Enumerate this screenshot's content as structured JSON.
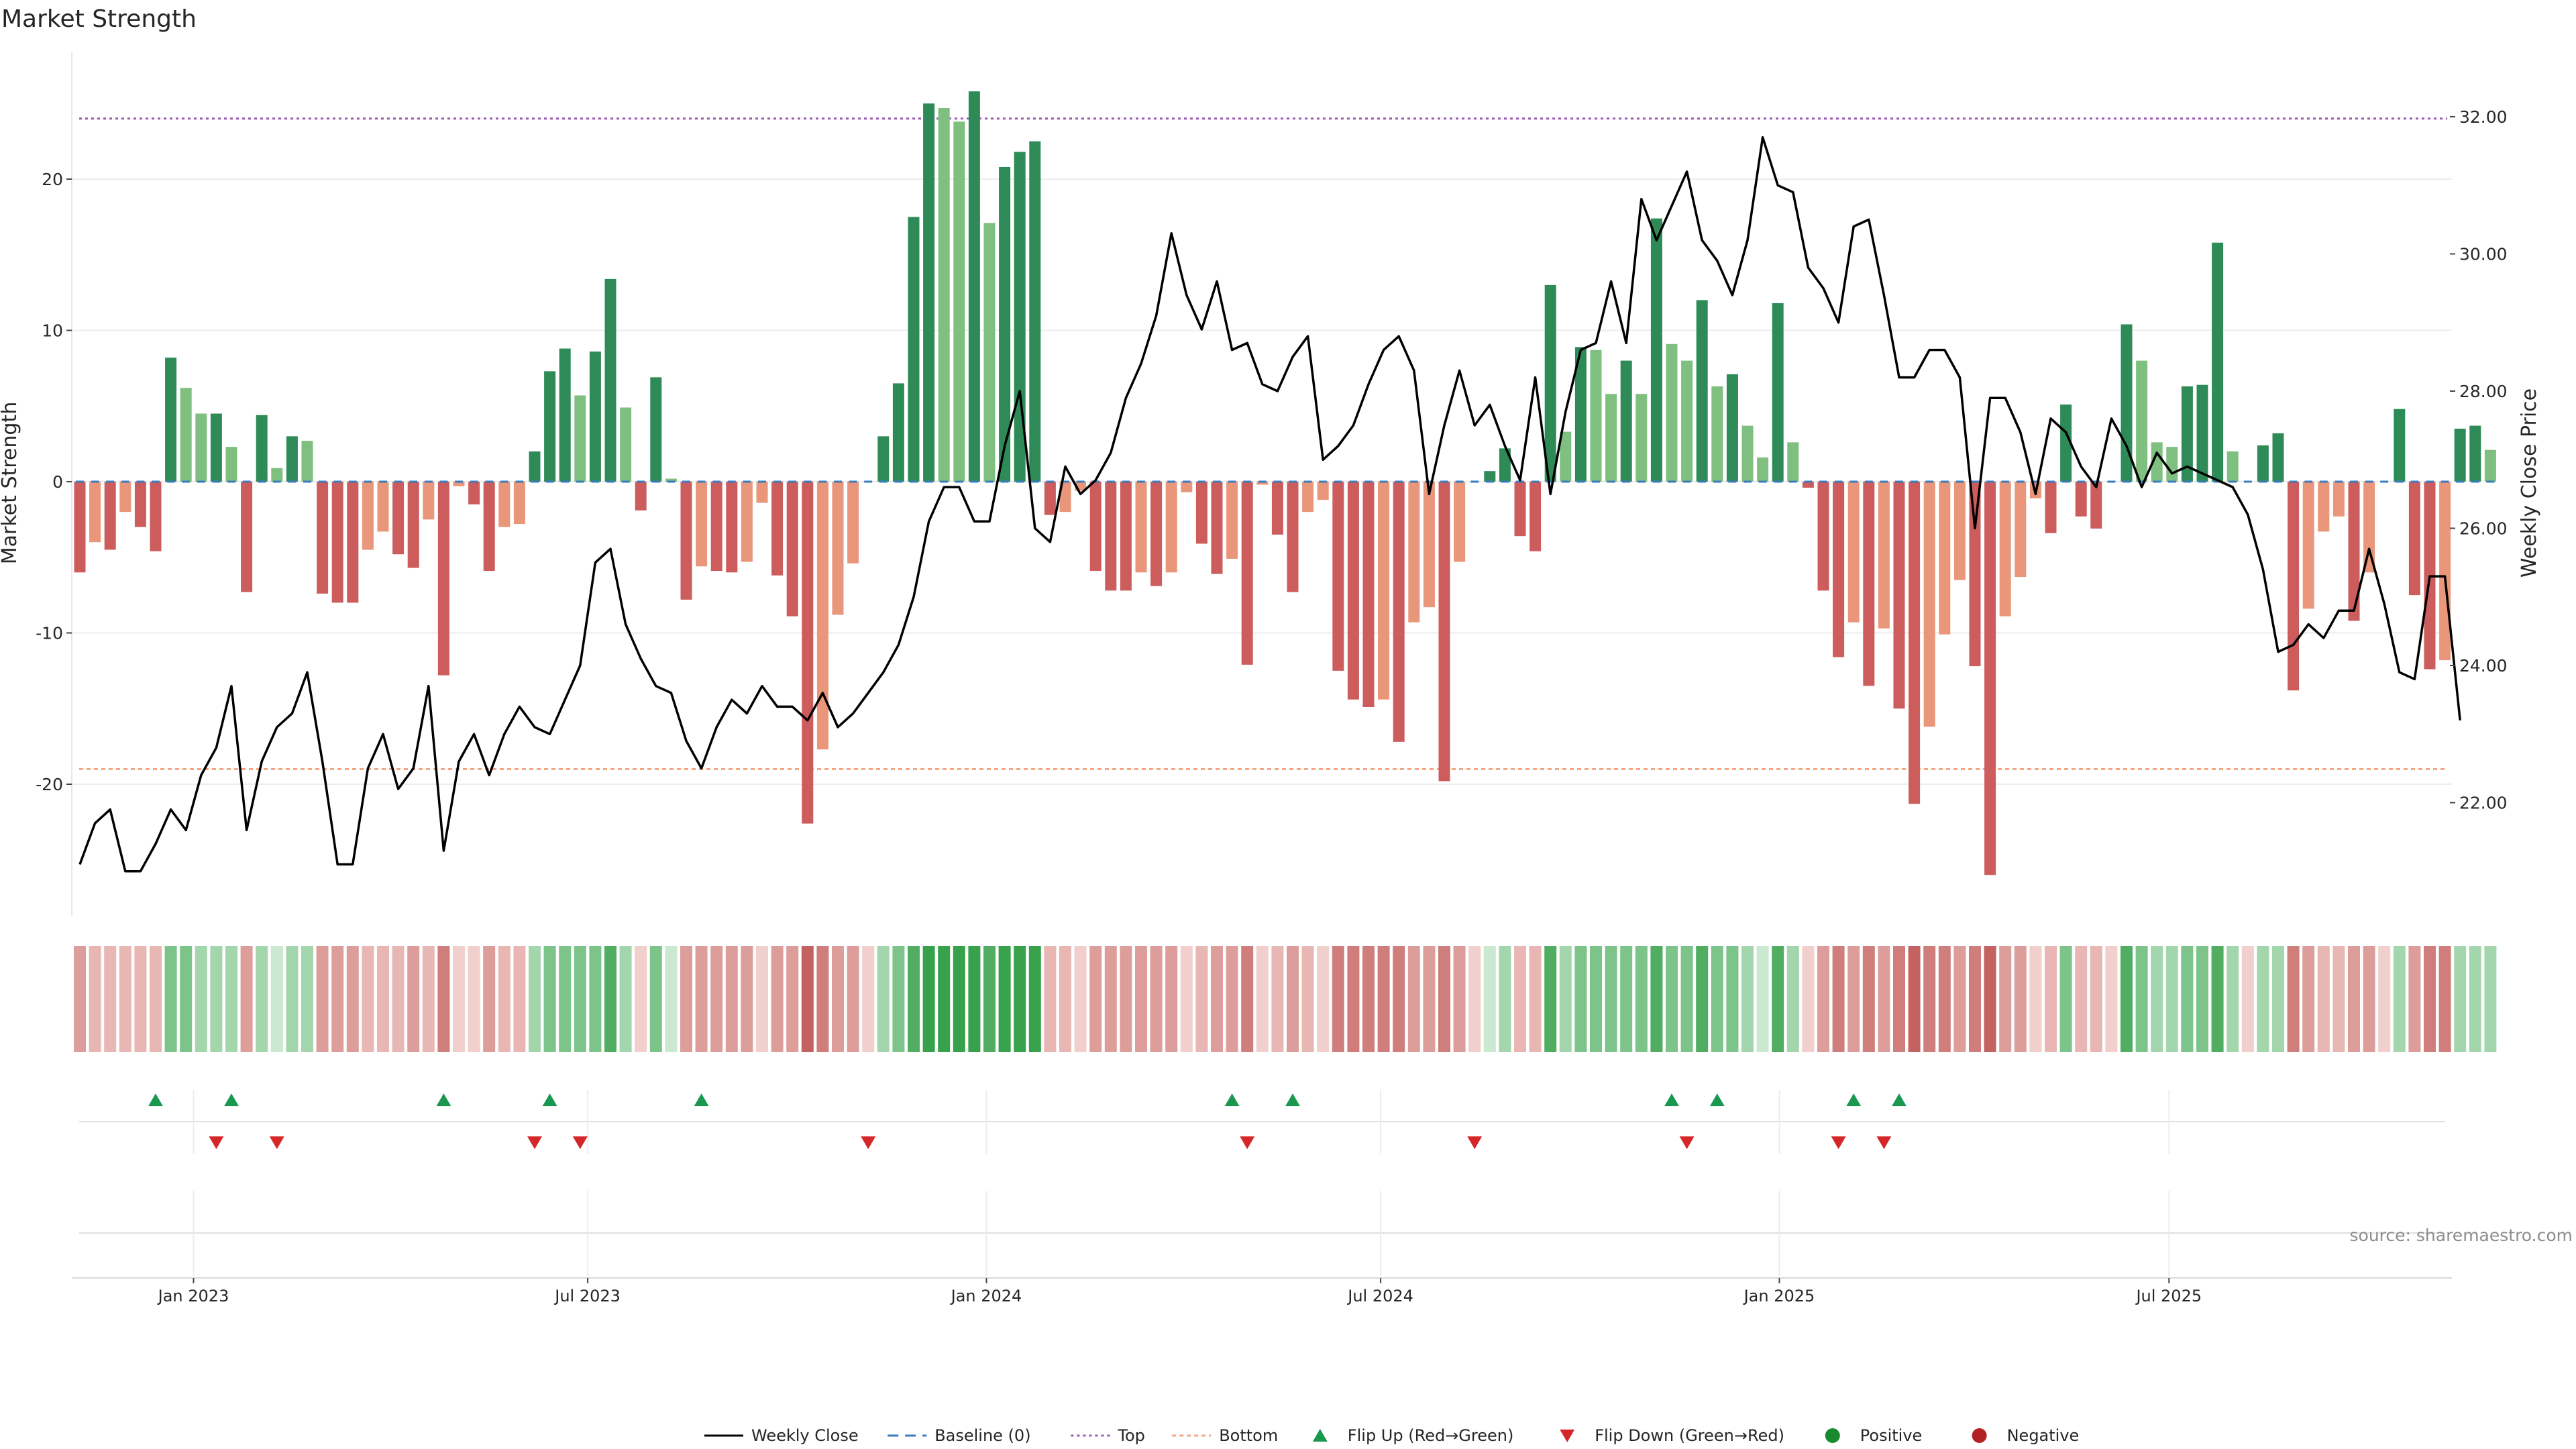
{
  "chart_data": {
    "type": "bar",
    "title": "Market Strength",
    "ylabel_left": "Market Strength",
    "ylabel_right": "Weekly Close Price",
    "ylim_left": [
      -28,
      28.5
    ],
    "ylim_right": [
      20.4,
      33.0
    ],
    "yticks_left": [
      {
        "v": 20,
        "label": "20"
      },
      {
        "v": 10,
        "label": "10"
      },
      {
        "v": 0,
        "label": "0"
      },
      {
        "v": -10,
        "label": "-10"
      },
      {
        "v": -20,
        "label": "-20"
      }
    ],
    "yticks_right": [
      {
        "v": 32,
        "label": "32.00"
      },
      {
        "v": 30,
        "label": "30.00"
      },
      {
        "v": 28,
        "label": "28.00"
      },
      {
        "v": 26,
        "label": "26.00"
      },
      {
        "v": 24,
        "label": "24.00"
      },
      {
        "v": 22,
        "label": "22.00"
      }
    ],
    "xticks": [
      {
        "i": 7.5,
        "label": "Jan 2023"
      },
      {
        "i": 33.5,
        "label": "Jul 2023"
      },
      {
        "i": 59.8,
        "label": "Jan 2024"
      },
      {
        "i": 85.8,
        "label": "Jul 2024"
      },
      {
        "i": 112.1,
        "label": "Jan 2025"
      },
      {
        "i": 137.8,
        "label": "Jul 2025"
      }
    ],
    "top_line": 24,
    "bottom_line": -19,
    "strength": [
      -6,
      -4,
      -4.5,
      -2,
      -3,
      -4.6,
      8.2,
      6.2,
      4.5,
      4.5,
      2.3,
      -7.3,
      4.4,
      0.9,
      3,
      2.7,
      -7.4,
      -8,
      -8,
      -4.5,
      -3.3,
      -4.8,
      -5.7,
      -2.5,
      -12.8,
      -0.3,
      -1.5,
      -5.9,
      -3,
      -2.8,
      2,
      7.3,
      8.8,
      5.7,
      8.6,
      13.4,
      4.9,
      -1.9,
      6.9,
      0.2,
      -7.8,
      -5.6,
      -5.9,
      -6,
      -5.3,
      -1.4,
      -6.2,
      -8.9,
      -22.6,
      -17.7,
      -8.8,
      -5.4,
      0,
      3,
      6.5,
      17.5,
      25,
      24.7,
      23.8,
      25.8,
      17.1,
      20.8,
      21.8,
      22.5,
      -2.2,
      -2,
      -0.6,
      -5.9,
      -7.2,
      -7.2,
      -6,
      -6.9,
      -6,
      -0.7,
      -4.1,
      -6.1,
      -5.1,
      -12.1,
      -0.2,
      -3.5,
      -7.3,
      -2,
      -1.2,
      -12.5,
      -14.4,
      -14.9,
      -14.4,
      -17.2,
      -9.3,
      -8.3,
      -19.8,
      -5.3,
      0,
      0.7,
      2.2,
      -3.6,
      -4.6,
      13,
      3.3,
      8.9,
      8.7,
      5.8,
      8,
      5.8,
      17.4,
      9.1,
      8,
      12,
      6.3,
      7.1,
      3.7,
      1.6,
      11.8,
      2.6,
      -0.4,
      -7.2,
      -11.6,
      -9.3,
      -13.5,
      -9.7,
      -15,
      -21.3,
      -16.2,
      -10.1,
      -6.5,
      -12.2,
      -26,
      -8.9,
      -6.3,
      -1.1,
      -3.4,
      5.1,
      -2.3,
      -3.1,
      0,
      10.4,
      8,
      2.6,
      2.3,
      6.3,
      6.4,
      15.8,
      2,
      0,
      2.4,
      3.2,
      -13.8,
      -8.4,
      -3.3,
      -2.3,
      -9.2,
      -6,
      0,
      4.8,
      -7.5,
      -12.4,
      -11.8,
      3.5,
      3.7,
      2.1
    ],
    "weekly_close": [
      21.1,
      21.7,
      21.9,
      21.0,
      21.0,
      21.4,
      21.9,
      21.6,
      22.4,
      22.8,
      23.7,
      21.6,
      22.6,
      23.1,
      23.3,
      23.9,
      22.6,
      21.1,
      21.1,
      22.5,
      23.0,
      22.2,
      22.5,
      23.7,
      21.3,
      22.6,
      23.0,
      22.4,
      23.0,
      23.4,
      23.1,
      23.0,
      23.5,
      24.0,
      25.5,
      25.7,
      24.6,
      24.1,
      23.7,
      23.6,
      22.9,
      22.5,
      23.1,
      23.5,
      23.3,
      23.7,
      23.4,
      23.4,
      23.2,
      23.6,
      23.1,
      23.3,
      23.6,
      23.9,
      24.3,
      25.0,
      26.1,
      26.6,
      26.6,
      26.1,
      26.1,
      27.2,
      28.0,
      26.0,
      25.8,
      26.9,
      26.5,
      26.7,
      27.1,
      27.9,
      28.4,
      29.1,
      30.3,
      29.4,
      28.9,
      29.6,
      28.6,
      28.7,
      28.1,
      28.0,
      28.5,
      28.8,
      27.0,
      27.2,
      27.5,
      28.1,
      28.6,
      28.8,
      28.3,
      26.5,
      27.5,
      28.3,
      27.5,
      27.8,
      27.2,
      26.7,
      28.2,
      26.5,
      27.7,
      28.6,
      28.7,
      29.6,
      28.7,
      30.8,
      30.2,
      30.7,
      31.2,
      30.2,
      29.9,
      29.4,
      30.2,
      31.7,
      31.0,
      30.9,
      29.8,
      29.5,
      29.0,
      30.4,
      30.5,
      29.4,
      28.2,
      28.2,
      28.6,
      28.6,
      28.2,
      26.0,
      27.9,
      27.9,
      27.4,
      26.5,
      27.6,
      27.4,
      26.9,
      26.6,
      27.6,
      27.2,
      26.6,
      27.1,
      26.8,
      26.9,
      26.8,
      26.7,
      26.6,
      26.2,
      25.4,
      24.2,
      24.3,
      24.6,
      24.4,
      24.8,
      24.8,
      25.7,
      24.9,
      23.9,
      23.8,
      25.3,
      25.3,
      23.2
    ],
    "flip_up_idx": [
      5,
      10,
      24,
      31,
      41,
      76,
      80,
      105,
      108,
      117,
      120
    ],
    "flip_down_idx": [
      9,
      13,
      30,
      33,
      52,
      77,
      92,
      106,
      116,
      119
    ],
    "heat_palette": {
      "green": [
        "#cbe8d0",
        "#a4d6ad",
        "#7cc48a",
        "#50ad62",
        "#38a14c"
      ],
      "red": [
        "#f0cfcc",
        "#e8b6b3",
        "#dd9e9b",
        "#cf7e7b",
        "#c46261"
      ]
    },
    "colors": {
      "pos_strong": "#2e8b57",
      "pos_weak": "#7fbf7f",
      "neg_strong": "#cd5c5c",
      "neg_weak": "#e9967a",
      "close_line": "#000000",
      "baseline": "#3a7bbf",
      "top_line": "#9b59b6",
      "bottom_line": "#f4a582",
      "flip_up": "#1a9850",
      "flip_down": "#d62728",
      "positive": "#1a8a2e",
      "negative": "#b22222"
    },
    "legend": [
      "Weekly Close",
      "Baseline (0)",
      "Top",
      "Bottom",
      "Flip Up (Red→Green)",
      "Flip Down (Green→Red)",
      "Positive",
      "Negative"
    ],
    "source_label": "source: sharemaestro.com"
  }
}
